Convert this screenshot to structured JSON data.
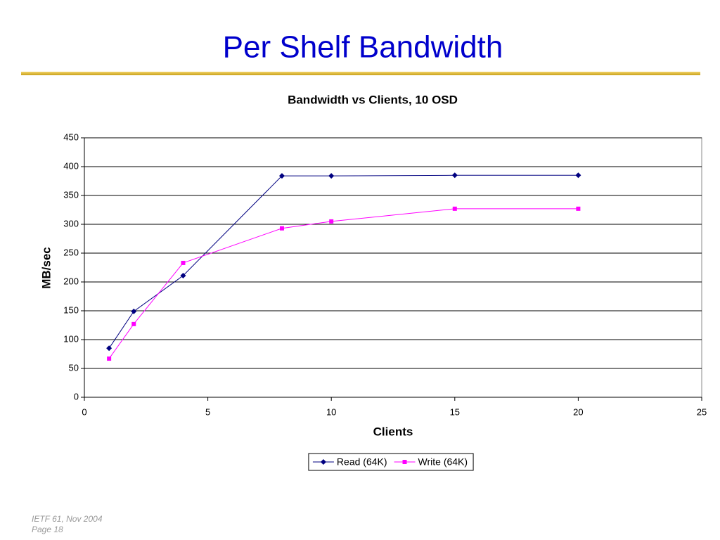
{
  "slide": {
    "title": "Per Shelf Bandwidth"
  },
  "chart_data": {
    "type": "line",
    "title": "Bandwidth vs Clients, 10 OSD",
    "x_label": "Clients",
    "y_label": "MB/sec",
    "x": [
      1,
      2,
      4,
      8,
      10,
      15,
      20
    ],
    "series": [
      {
        "name": "Read (64K)",
        "color": "#000080",
        "marker": "diamond",
        "values": [
          85,
          149,
          211,
          384,
          384,
          385,
          385
        ]
      },
      {
        "name": "Write (64K)",
        "color": "#ff00ff",
        "marker": "square",
        "values": [
          67,
          127,
          233,
          293,
          305,
          327,
          327
        ]
      }
    ],
    "xlim": [
      0,
      25
    ],
    "xticks": [
      0,
      5,
      10,
      15,
      20,
      25
    ],
    "ylim": [
      0,
      450
    ],
    "yticks": [
      0,
      50,
      100,
      150,
      200,
      250,
      300,
      350,
      400,
      450
    ],
    "grid": true,
    "legend": "bottom"
  },
  "footer": {
    "lines": [
      "IETF 61, Nov 2004",
      "Page 18"
    ]
  }
}
